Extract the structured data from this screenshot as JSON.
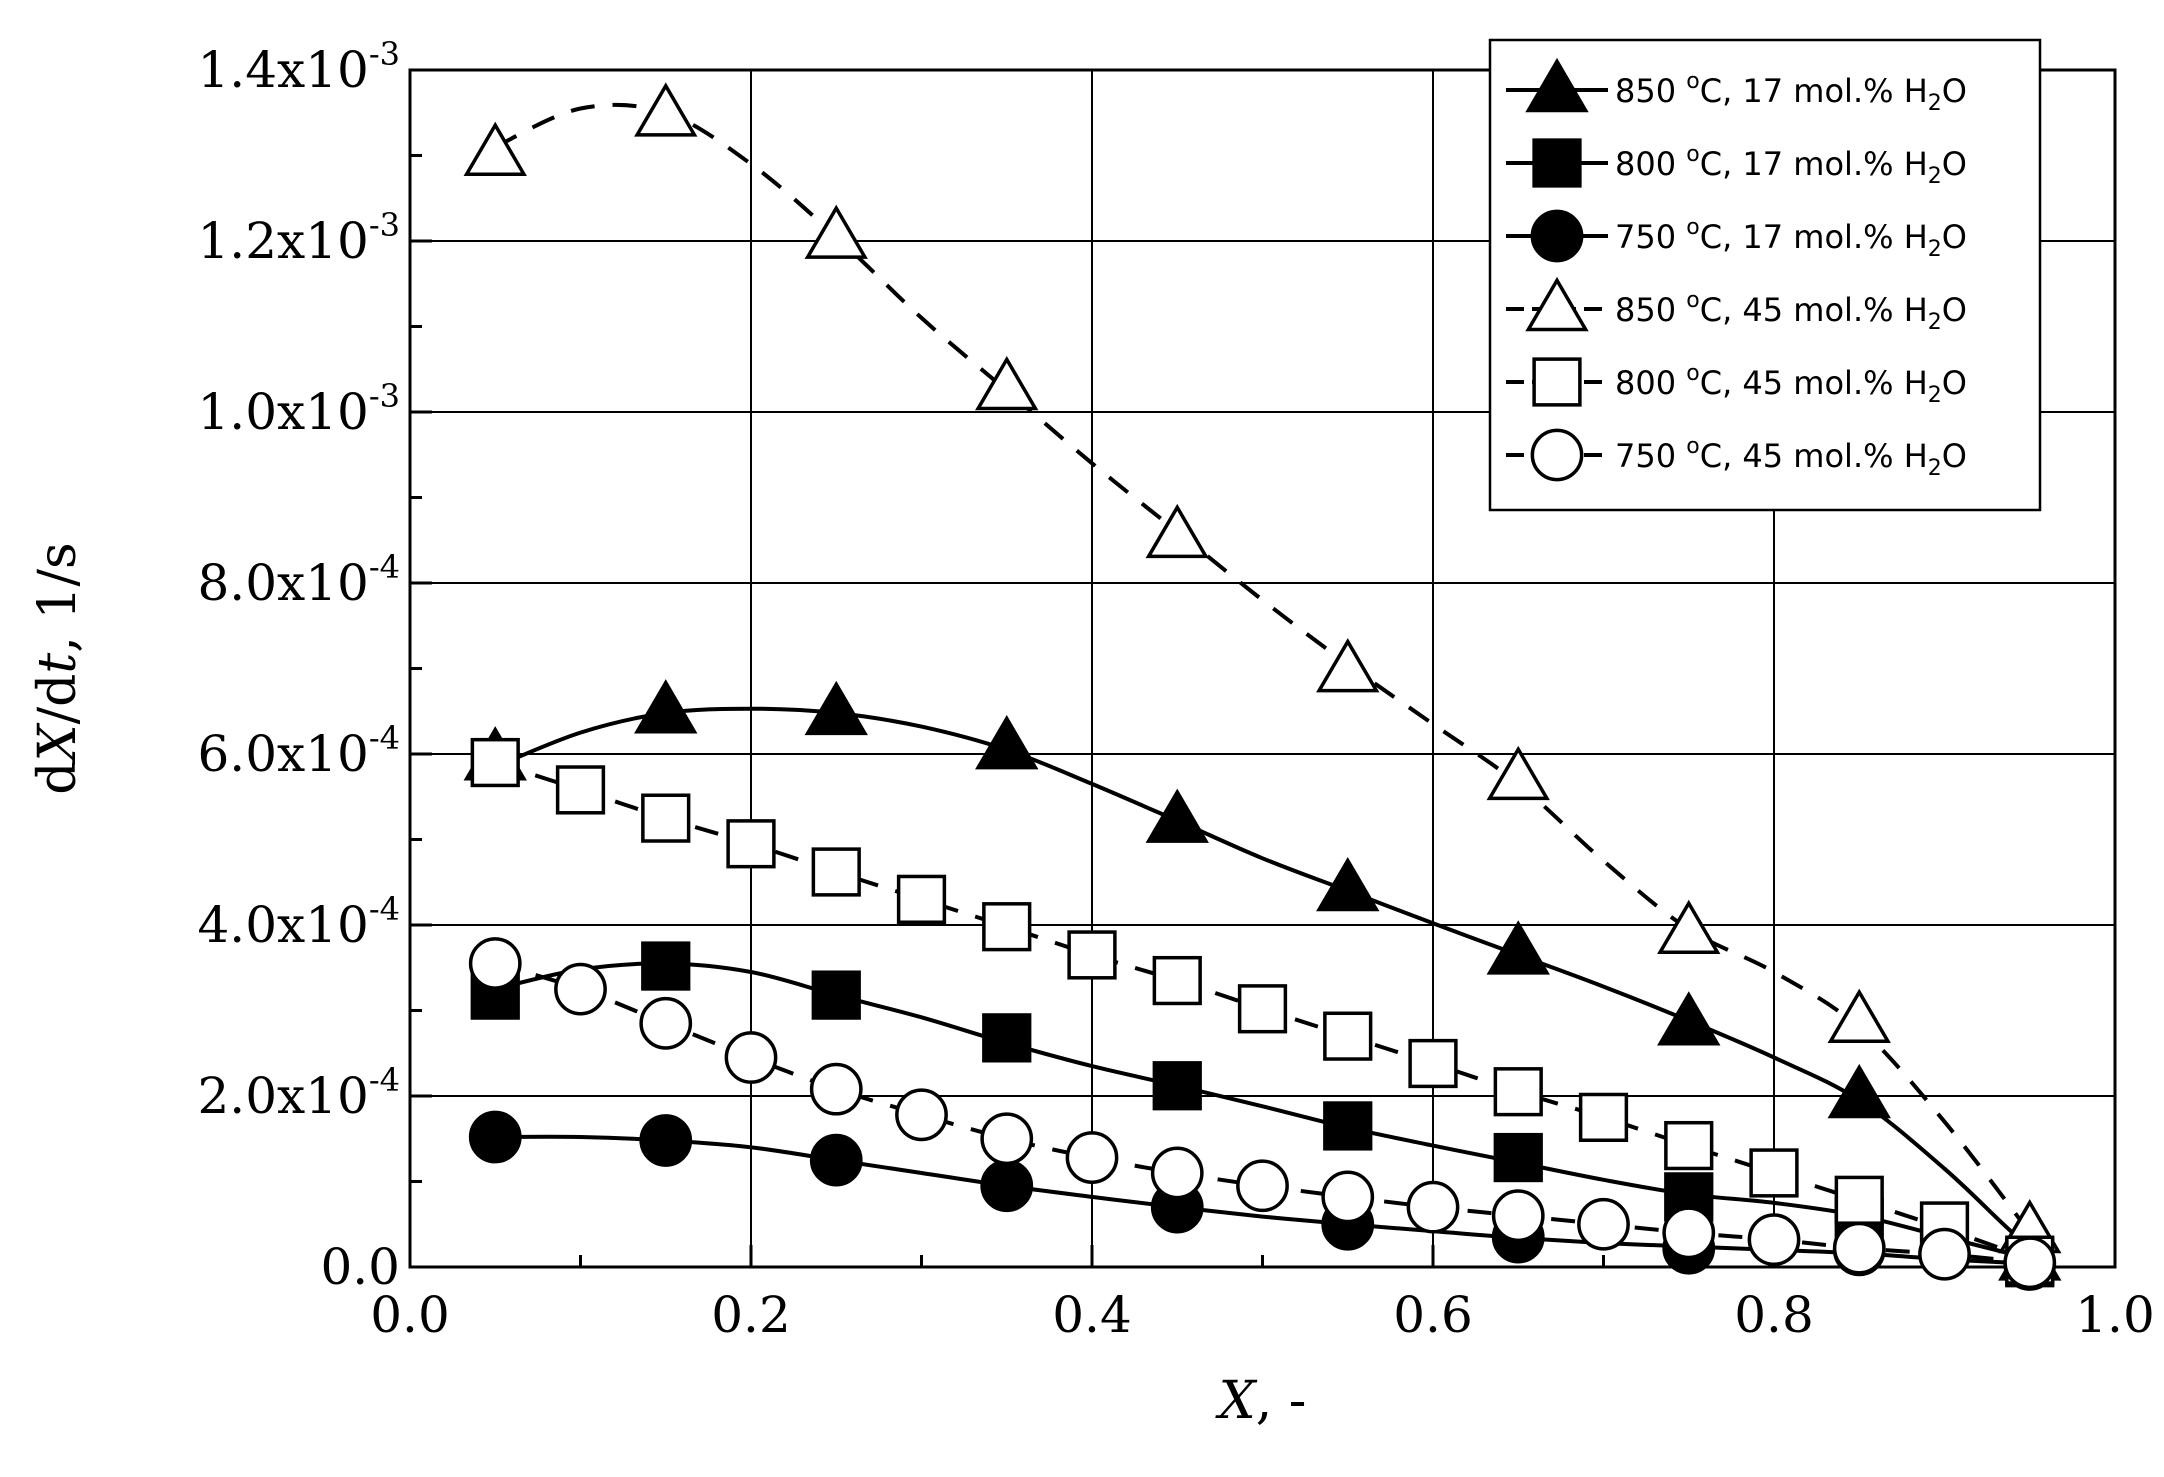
{
  "chart_data": {
    "type": "scatter",
    "xlabel": "X, -",
    "xlabel_parts": {
      "var": "X",
      "rest": ", -"
    },
    "ylabel": "dX/dt, 1/s",
    "ylabel_parts": {
      "pre": "d",
      "var1": "X",
      "mid": "/d",
      "var2": "t",
      "rest": ", 1/s"
    },
    "xlim": [
      0.0,
      1.0
    ],
    "ylim": [
      0.0,
      0.0014
    ],
    "grid": true,
    "legend_position": "top-right",
    "x_ticks": [
      {
        "value": 0.0,
        "label": "0.0"
      },
      {
        "value": 0.2,
        "label": "0.2"
      },
      {
        "value": 0.4,
        "label": "0.4"
      },
      {
        "value": 0.6,
        "label": "0.6"
      },
      {
        "value": 0.8,
        "label": "0.8"
      },
      {
        "value": 1.0,
        "label": "1.0"
      }
    ],
    "y_ticks": [
      {
        "value": 0.0,
        "label": "0.0",
        "mantissa": "",
        "exponent": ""
      },
      {
        "value": 0.0002,
        "label": "2.0x10-4",
        "mantissa": "2.0x10",
        "exponent": "-4"
      },
      {
        "value": 0.0004,
        "label": "4.0x10-4",
        "mantissa": "4.0x10",
        "exponent": "-4"
      },
      {
        "value": 0.0006,
        "label": "6.0x10-4",
        "mantissa": "6.0x10",
        "exponent": "-4"
      },
      {
        "value": 0.0008,
        "label": "8.0x10-4",
        "mantissa": "8.0x10",
        "exponent": "-4"
      },
      {
        "value": 0.001,
        "label": "1.0x10-3",
        "mantissa": "1.0x10",
        "exponent": "-3"
      },
      {
        "value": 0.0012,
        "label": "1.2x10-3",
        "mantissa": "1.2x10",
        "exponent": "-3"
      },
      {
        "value": 0.0014,
        "label": "1.4x10-3",
        "mantissa": "1.4x10",
        "exponent": "-3"
      }
    ],
    "series": [
      {
        "name": "850 oC, 17 mol.% H2O",
        "label_temp": "850 ",
        "label_sup": "o",
        "label_mid": "C, 17 mol.% H",
        "label_sub": "2",
        "label_end": "O",
        "marker": "triangle",
        "filled": true,
        "line": "solid",
        "x": [
          0.05,
          0.15,
          0.25,
          0.35,
          0.45,
          0.55,
          0.65,
          0.75,
          0.85,
          0.95
        ],
        "y": [
          0.000595,
          0.00065,
          0.000648,
          0.000608,
          0.000522,
          0.000442,
          0.000368,
          0.000285,
          0.0002,
          1e-05
        ],
        "curve": [
          [
            0.05,
            0.000585
          ],
          [
            0.1,
            0.000625
          ],
          [
            0.15,
            0.000648
          ],
          [
            0.2,
            0.000653
          ],
          [
            0.25,
            0.000648
          ],
          [
            0.3,
            0.000632
          ],
          [
            0.35,
            0.000605
          ],
          [
            0.4,
            0.000565
          ],
          [
            0.45,
            0.000522
          ],
          [
            0.5,
            0.000478
          ],
          [
            0.55,
            0.00044
          ],
          [
            0.6,
            0.000402
          ],
          [
            0.65,
            0.000365
          ],
          [
            0.7,
            0.000328
          ],
          [
            0.75,
            0.000288
          ],
          [
            0.8,
            0.000245
          ],
          [
            0.85,
            0.000195
          ],
          [
            0.9,
            0.000115
          ],
          [
            0.94,
            4e-05
          ],
          [
            0.96,
            1e-05
          ]
        ]
      },
      {
        "name": "800 oC, 17 mol.% H2O",
        "label_temp": "800 ",
        "label_sup": "o",
        "label_mid": "C, 17 mol.% H",
        "label_sub": "2",
        "label_end": "O",
        "marker": "square",
        "filled": true,
        "line": "solid",
        "x": [
          0.05,
          0.15,
          0.25,
          0.35,
          0.45,
          0.55,
          0.65,
          0.75,
          0.85,
          0.95
        ],
        "y": [
          0.000318,
          0.000352,
          0.000318,
          0.000268,
          0.000212,
          0.000165,
          0.000128,
          8.2e-05,
          5.2e-05,
          5e-06
        ],
        "curve": [
          [
            0.05,
            0.000325
          ],
          [
            0.1,
            0.000348
          ],
          [
            0.15,
            0.000355
          ],
          [
            0.2,
            0.000345
          ],
          [
            0.25,
            0.000318
          ],
          [
            0.3,
            0.000292
          ],
          [
            0.35,
            0.000262
          ],
          [
            0.4,
            0.000235
          ],
          [
            0.45,
            0.000212
          ],
          [
            0.5,
            0.000188
          ],
          [
            0.55,
            0.000163
          ],
          [
            0.6,
            0.000142
          ],
          [
            0.65,
            0.000122
          ],
          [
            0.7,
            0.000102
          ],
          [
            0.75,
            8.5e-05
          ],
          [
            0.8,
            7.5e-05
          ],
          [
            0.85,
            6e-05
          ],
          [
            0.9,
            3.5e-05
          ],
          [
            0.95,
            1e-05
          ],
          [
            0.96,
            5e-06
          ]
        ]
      },
      {
        "name": "750 oC, 17 mol.% H2O",
        "label_temp": "750 ",
        "label_sup": "o",
        "label_mid": "C, 17 mol.% H",
        "label_sub": "2",
        "label_end": "O",
        "marker": "circle",
        "filled": true,
        "line": "solid",
        "x": [
          0.05,
          0.15,
          0.25,
          0.35,
          0.45,
          0.55,
          0.65,
          0.75,
          0.85,
          0.95
        ],
        "y": [
          0.000152,
          0.000148,
          0.000125,
          9.5e-05,
          7e-05,
          5e-05,
          3.5e-05,
          2.2e-05,
          2e-05,
          3e-06
        ],
        "curve": [
          [
            0.05,
            0.000152
          ],
          [
            0.1,
            0.000152
          ],
          [
            0.15,
            0.000148
          ],
          [
            0.2,
            0.00014
          ],
          [
            0.25,
            0.000125
          ],
          [
            0.3,
            0.00011
          ],
          [
            0.35,
            9.5e-05
          ],
          [
            0.4,
            8.2e-05
          ],
          [
            0.45,
            7e-05
          ],
          [
            0.5,
            5.9e-05
          ],
          [
            0.55,
            5e-05
          ],
          [
            0.6,
            4.2e-05
          ],
          [
            0.65,
            3.4e-05
          ],
          [
            0.7,
            2.8e-05
          ],
          [
            0.75,
            2.4e-05
          ],
          [
            0.8,
            2e-05
          ],
          [
            0.85,
            1.6e-05
          ],
          [
            0.9,
            9e-06
          ],
          [
            0.95,
            4e-06
          ]
        ]
      },
      {
        "name": "850 oC, 45 mol.% H2O",
        "label_temp": "850 ",
        "label_sup": "o",
        "label_mid": "C, 45 mol.% H",
        "label_sub": "2",
        "label_end": "O",
        "marker": "triangle",
        "filled": false,
        "line": "dashed",
        "x": [
          0.05,
          0.15,
          0.25,
          0.35,
          0.45,
          0.55,
          0.65,
          0.75,
          0.85,
          0.95
        ],
        "y": [
          0.001302,
          0.001348,
          0.001205,
          0.001028,
          0.000855,
          0.000698,
          0.000572,
          0.000392,
          0.000288,
          4.2e-05
        ],
        "curve": [
          [
            0.05,
            0.00131
          ],
          [
            0.1,
            0.001355
          ],
          [
            0.15,
            0.00135
          ],
          [
            0.2,
            0.00129
          ],
          [
            0.25,
            0.001205
          ],
          [
            0.3,
            0.00111
          ],
          [
            0.35,
            0.001025
          ],
          [
            0.4,
            0.00094
          ],
          [
            0.45,
            0.00086
          ],
          [
            0.5,
            0.00078
          ],
          [
            0.55,
            0.000705
          ],
          [
            0.6,
            0.000635
          ],
          [
            0.65,
            0.000565
          ],
          [
            0.7,
            0.000475
          ],
          [
            0.75,
            0.000395
          ],
          [
            0.8,
            0.000345
          ],
          [
            0.85,
            0.00028
          ],
          [
            0.9,
            0.00017
          ],
          [
            0.95,
            4e-05
          ],
          [
            0.96,
            1e-05
          ]
        ]
      },
      {
        "name": "800 oC, 45 mol.% H2O",
        "label_temp": "800 ",
        "label_sup": "o",
        "label_mid": "C, 45 mol.% H",
        "label_sub": "2",
        "label_end": "O",
        "marker": "square",
        "filled": false,
        "line": "dashed",
        "x": [
          0.05,
          0.1,
          0.15,
          0.2,
          0.25,
          0.3,
          0.35,
          0.4,
          0.45,
          0.5,
          0.55,
          0.6,
          0.65,
          0.7,
          0.75,
          0.8,
          0.85,
          0.9,
          0.95
        ],
        "y": [
          0.00059,
          0.000558,
          0.000525,
          0.000495,
          0.000462,
          0.00043,
          0.000398,
          0.000365,
          0.000335,
          0.000302,
          0.00027,
          0.000238,
          0.000205,
          0.000175,
          0.000142,
          0.00011,
          7.8e-05,
          4.8e-05,
          8e-06
        ],
        "curve": [
          [
            0.05,
            0.00059
          ],
          [
            0.1,
            0.000558
          ],
          [
            0.15,
            0.000525
          ],
          [
            0.2,
            0.000495
          ],
          [
            0.25,
            0.000462
          ],
          [
            0.3,
            0.00043
          ],
          [
            0.35,
            0.000398
          ],
          [
            0.4,
            0.000365
          ],
          [
            0.45,
            0.000335
          ],
          [
            0.5,
            0.000302
          ],
          [
            0.55,
            0.00027
          ],
          [
            0.6,
            0.000238
          ],
          [
            0.65,
            0.000205
          ],
          [
            0.7,
            0.000175
          ],
          [
            0.75,
            0.000142
          ],
          [
            0.8,
            0.00011
          ],
          [
            0.85,
            7.8e-05
          ],
          [
            0.9,
            4.5e-05
          ],
          [
            0.95,
            1e-05
          ],
          [
            0.96,
            5e-06
          ]
        ]
      },
      {
        "name": "750 oC, 45 mol.% H2O",
        "label_temp": "750 ",
        "label_sup": "o",
        "label_mid": "C, 45 mol.% H",
        "label_sub": "2",
        "label_end": "O",
        "marker": "circle",
        "filled": false,
        "line": "dashed",
        "x": [
          0.05,
          0.1,
          0.15,
          0.2,
          0.25,
          0.3,
          0.35,
          0.4,
          0.45,
          0.5,
          0.55,
          0.6,
          0.65,
          0.7,
          0.75,
          0.8,
          0.85,
          0.9,
          0.95
        ],
        "y": [
          0.000355,
          0.000325,
          0.000285,
          0.000245,
          0.000208,
          0.000178,
          0.00015,
          0.000128,
          0.00011,
          9.5e-05,
          8.2e-05,
          7e-05,
          6e-05,
          5e-05,
          4e-05,
          3.2e-05,
          2.2e-05,
          1.5e-05,
          5e-06
        ],
        "curve": [
          [
            0.05,
            0.000355
          ],
          [
            0.1,
            0.000325
          ],
          [
            0.15,
            0.000285
          ],
          [
            0.2,
            0.000245
          ],
          [
            0.25,
            0.000208
          ],
          [
            0.3,
            0.000178
          ],
          [
            0.35,
            0.00015
          ],
          [
            0.4,
            0.000128
          ],
          [
            0.45,
            0.00011
          ],
          [
            0.5,
            9.5e-05
          ],
          [
            0.55,
            8.2e-05
          ],
          [
            0.6,
            7e-05
          ],
          [
            0.65,
            6e-05
          ],
          [
            0.7,
            5e-05
          ],
          [
            0.75,
            4e-05
          ],
          [
            0.8,
            3.2e-05
          ],
          [
            0.85,
            2.2e-05
          ],
          [
            0.9,
            1.5e-05
          ],
          [
            0.95,
            5e-06
          ]
        ]
      }
    ]
  }
}
